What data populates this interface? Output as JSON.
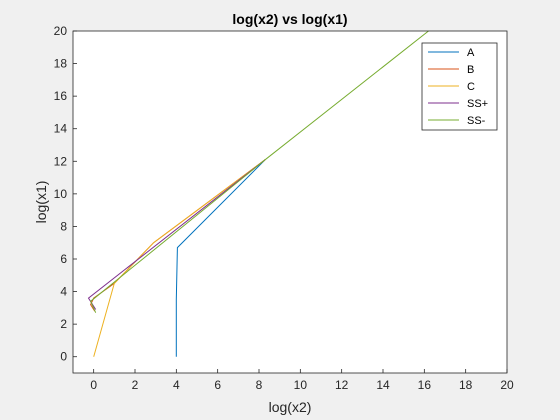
{
  "chart_data": {
    "type": "line",
    "title": "log(x2) vs log(x1)",
    "xlabel": "log(x2)",
    "ylabel": "log(x1)",
    "xlim": [
      -1,
      20
    ],
    "ylim": [
      -1,
      20
    ],
    "xticks": [
      0,
      2,
      4,
      6,
      8,
      10,
      12,
      14,
      16,
      18,
      20
    ],
    "yticks": [
      0,
      2,
      4,
      6,
      8,
      10,
      12,
      14,
      16,
      18,
      20
    ],
    "legend_position": "top-right",
    "grid": false,
    "series": [
      {
        "name": "A",
        "color": "#0072BD",
        "x": [
          4.0,
          4.0,
          4.05,
          8.3
        ],
        "y": [
          0.0,
          3.5,
          6.7,
          12.1
        ]
      },
      {
        "name": "B",
        "color": "#D95319",
        "x": [
          0.05,
          -0.15,
          0.0,
          1.0,
          2.9,
          8.3
        ],
        "y": [
          2.8,
          3.2,
          3.6,
          4.5,
          7.0,
          12.1
        ]
      },
      {
        "name": "C",
        "color": "#EDB120",
        "x": [
          0.0,
          1.0,
          2.9,
          8.3
        ],
        "y": [
          0.0,
          4.5,
          7.0,
          12.1
        ]
      },
      {
        "name": "SS+",
        "color": "#7E2F8E",
        "x": [
          0.1,
          -0.25,
          8.3
        ],
        "y": [
          2.9,
          3.6,
          12.1
        ]
      },
      {
        "name": "SS-",
        "color": "#77AC30",
        "x": [
          0.1,
          -0.15,
          8.3,
          16.2
        ],
        "y": [
          2.7,
          3.4,
          12.1,
          20.0
        ]
      }
    ]
  }
}
